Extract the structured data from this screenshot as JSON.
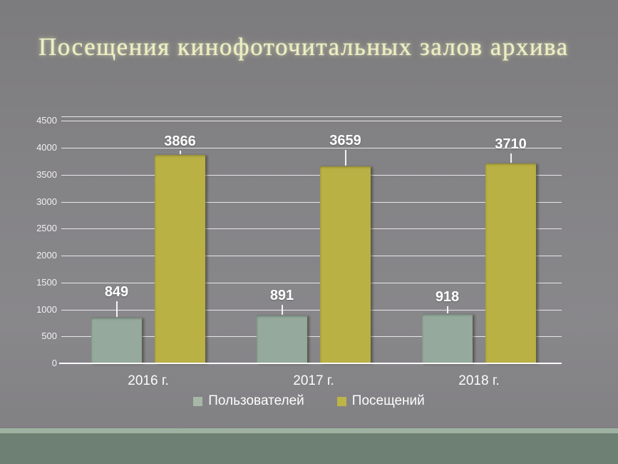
{
  "slide": {
    "title": "Посещения кинофоточитальных залов архива",
    "background_color": "#858487",
    "footer_accent_color": "#9fb2a1",
    "footer_band_color": "#6d8073"
  },
  "chart_data": {
    "type": "bar",
    "title": "",
    "categories": [
      "2016 г.",
      "2017 г.",
      "2018 г."
    ],
    "series": [
      {
        "id": "users",
        "name": "Пользователей",
        "color": "#95a99c",
        "legend_color": "#a7b8a9",
        "values": [
          849,
          891,
          918
        ]
      },
      {
        "id": "visits",
        "name": "Посещений",
        "color": "#b9b144",
        "legend_color": "#bdb448",
        "values": [
          3866,
          3659,
          3710
        ]
      }
    ],
    "ylim": [
      0,
      4500
    ],
    "yticks": [
      0,
      500,
      1000,
      1500,
      2000,
      2500,
      3000,
      3500,
      4000,
      4500
    ],
    "grid": true,
    "gridline_color": "#ffffff",
    "tick_label_color": "#f0f0f0",
    "data_labels": true,
    "data_label_color": "#ffffff",
    "legend_position": "bottom"
  }
}
